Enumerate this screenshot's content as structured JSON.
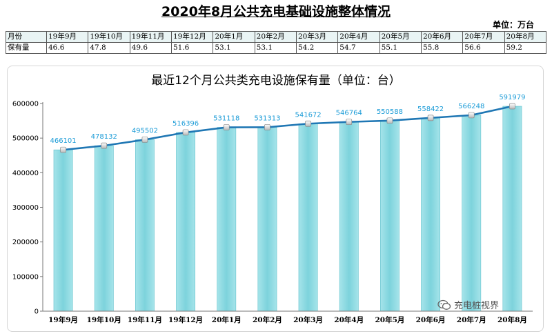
{
  "header": {
    "title": "2020年8月公共充电基础设施整体情况",
    "unit": "单位：万台"
  },
  "table": {
    "row_labels": [
      "月份",
      "保有量"
    ],
    "months": [
      "19年9月",
      "19年10月",
      "19年11月",
      "19年12月",
      "20年1月",
      "20年2月",
      "20年3月",
      "20年4月",
      "20年5月",
      "20年6月",
      "20年7月",
      "20年8月"
    ],
    "values": [
      "46.6",
      "47.8",
      "49.6",
      "51.6",
      "53.1",
      "53.1",
      "54.2",
      "54.7",
      "55.1",
      "55.8",
      "56.6",
      "59.2"
    ]
  },
  "chart_data": {
    "type": "bar",
    "title": "最近12个月公共类充电设施保有量（单位：台）",
    "categories": [
      "19年9月",
      "19年10月",
      "19年11月",
      "19年12月",
      "20年1月",
      "20年2月",
      "20年3月",
      "20年4月",
      "20年5月",
      "20年6月",
      "20年7月",
      "20年8月"
    ],
    "values": [
      466101,
      478132,
      495502,
      516396,
      531118,
      531313,
      541672,
      546764,
      550588,
      558422,
      566248,
      591979
    ],
    "overlay_line": true,
    "ylim": [
      0,
      600000
    ],
    "yticks": [
      0,
      100000,
      200000,
      300000,
      400000,
      500000,
      600000
    ],
    "ytick_labels": [
      "0",
      "100000",
      "200000",
      "300000",
      "400000",
      "500000",
      "600000"
    ],
    "grid": false,
    "colors": {
      "bar": "#7dd3dc",
      "bar_edge": "#5fc0cb",
      "line": "#1f77b4",
      "data_label": "#1a9bd7",
      "marker": "#e6e6e6"
    }
  },
  "watermark": {
    "text": "充电桩视界",
    "icon": "wechat-icon"
  }
}
